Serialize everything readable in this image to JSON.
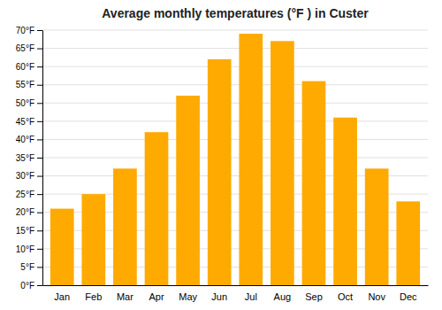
{
  "chart_data": {
    "type": "bar",
    "title": "Average monthly temperatures (°F ) in Custer",
    "categories": [
      "Jan",
      "Feb",
      "Mar",
      "Apr",
      "May",
      "Jun",
      "Jul",
      "Aug",
      "Sep",
      "Oct",
      "Nov",
      "Dec"
    ],
    "values": [
      21,
      25,
      32,
      42,
      52,
      62,
      69,
      67,
      56,
      46,
      32,
      23
    ],
    "color": "#FFAA00",
    "ylim": [
      0,
      70
    ],
    "yticks": [
      {
        "value": 0,
        "label": "0°F"
      },
      {
        "value": 5,
        "label": "5°F"
      },
      {
        "value": 10,
        "label": "10°F"
      },
      {
        "value": 15,
        "label": "15°F"
      },
      {
        "value": 20,
        "label": "20°F"
      },
      {
        "value": 25,
        "label": "25°F"
      },
      {
        "value": 30,
        "label": "30°F"
      },
      {
        "value": 35,
        "label": "35°F"
      },
      {
        "value": 40,
        "label": "40°F"
      },
      {
        "value": 45,
        "label": "45°F"
      },
      {
        "value": 50,
        "label": "50°F"
      },
      {
        "value": 55,
        "label": "55°F"
      },
      {
        "value": 60,
        "label": "60°F"
      },
      {
        "value": 65,
        "label": "65°F"
      },
      {
        "value": 70,
        "label": "70°F"
      }
    ],
    "grid": true
  }
}
